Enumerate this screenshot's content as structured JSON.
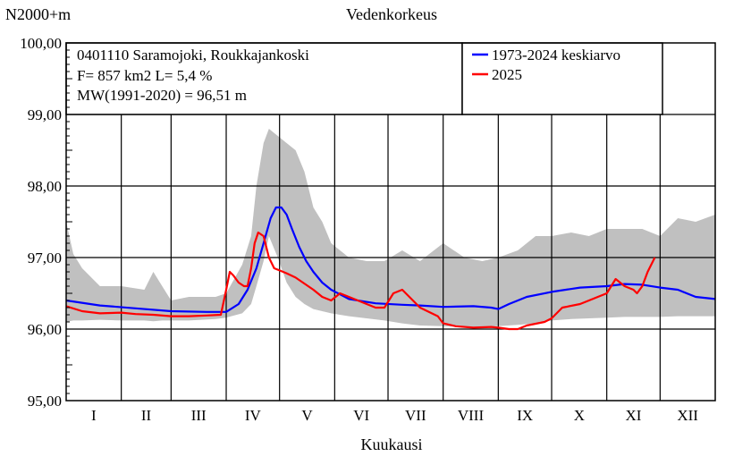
{
  "chart_data": {
    "type": "area",
    "title": "Vedenkorkeus",
    "unit_label": "N2000+m",
    "xlabel": "Kuukausi",
    "ylim": [
      95.0,
      100.0
    ],
    "xlim": [
      1,
      366
    ],
    "grid": true,
    "y_ticks": [
      "95,00",
      "96,00",
      "97,00",
      "98,00",
      "99,00",
      "100,00"
    ],
    "y_tick_values": [
      95,
      96,
      97,
      98,
      99,
      100
    ],
    "months": [
      "I",
      "II",
      "III",
      "IV",
      "V",
      "VI",
      "VII",
      "VIII",
      "IX",
      "X",
      "XI",
      "XII"
    ],
    "month_start_days": [
      1,
      32,
      60,
      91,
      121,
      152,
      182,
      213,
      244,
      274,
      305,
      335
    ],
    "info": {
      "station": "0401110 Saramojoki, Roukkajankoski",
      "area": "F=    857 km2 L=  5,4 %",
      "mean_level": "MW(1991-2020) = 96,51 m"
    },
    "legend": {
      "placement": "top-right"
    },
    "range_band": {
      "color": "#c0c0c0",
      "x": [
        1,
        5,
        10,
        20,
        32,
        45,
        50,
        55,
        60,
        70,
        85,
        91,
        100,
        105,
        108,
        112,
        115,
        120,
        125,
        130,
        135,
        140,
        145,
        150,
        155,
        160,
        170,
        180,
        190,
        200,
        213,
        225,
        235,
        244,
        255,
        265,
        274,
        285,
        295,
        305,
        315,
        325,
        335,
        345,
        355,
        366
      ],
      "min": [
        96.1,
        96.12,
        96.12,
        96.13,
        96.12,
        96.12,
        96.11,
        96.12,
        96.12,
        96.12,
        96.14,
        96.16,
        96.22,
        96.35,
        96.6,
        96.95,
        97.3,
        97.0,
        96.65,
        96.45,
        96.35,
        96.28,
        96.25,
        96.22,
        96.2,
        96.18,
        96.15,
        96.12,
        96.08,
        96.05,
        96.04,
        96.03,
        96.03,
        96.04,
        96.06,
        96.08,
        96.12,
        96.14,
        96.15,
        96.16,
        96.17,
        96.17,
        96.17,
        96.18,
        96.18,
        96.18
      ],
      "max": [
        97.5,
        97.05,
        96.85,
        96.6,
        96.6,
        96.55,
        96.8,
        96.6,
        96.4,
        96.45,
        96.45,
        96.5,
        96.9,
        97.3,
        98.0,
        98.6,
        98.8,
        98.7,
        98.6,
        98.5,
        98.2,
        97.7,
        97.5,
        97.2,
        97.1,
        97.0,
        96.95,
        96.95,
        97.1,
        96.95,
        97.2,
        97.0,
        96.95,
        97.0,
        97.1,
        97.3,
        97.3,
        97.35,
        97.3,
        97.4,
        97.4,
        97.4,
        97.3,
        97.55,
        97.5,
        97.6
      ]
    },
    "series": [
      {
        "name": "1973-2024 keskiarvo",
        "color": "#0000ff",
        "x": [
          1,
          20,
          40,
          60,
          80,
          91,
          98,
          103,
          108,
          112,
          116,
          119,
          122,
          125,
          128,
          132,
          136,
          140,
          145,
          150,
          160,
          175,
          190,
          200,
          213,
          230,
          240,
          244,
          250,
          260,
          274,
          290,
          305,
          315,
          325,
          335,
          345,
          355,
          366
        ],
        "values": [
          96.4,
          96.33,
          96.29,
          96.25,
          96.24,
          96.24,
          96.35,
          96.55,
          96.85,
          97.2,
          97.55,
          97.7,
          97.7,
          97.6,
          97.4,
          97.15,
          96.95,
          96.8,
          96.65,
          96.55,
          96.42,
          96.36,
          96.34,
          96.33,
          96.31,
          96.32,
          96.3,
          96.28,
          96.35,
          96.45,
          96.52,
          96.58,
          96.6,
          96.63,
          96.62,
          96.58,
          96.55,
          96.45,
          96.42
        ]
      },
      {
        "name": "2025",
        "color": "#ff0000",
        "x": [
          1,
          10,
          20,
          32,
          40,
          50,
          60,
          70,
          80,
          88,
          91,
          93,
          95,
          98,
          101,
          103,
          105,
          107,
          109,
          112,
          115,
          118,
          121,
          125,
          130,
          140,
          145,
          150,
          155,
          160,
          165,
          170,
          175,
          180,
          185,
          190,
          200,
          210,
          213,
          220,
          230,
          240,
          244,
          250,
          255,
          260,
          270,
          274,
          280,
          290,
          295,
          300,
          305,
          310,
          315,
          320,
          322,
          325,
          328,
          332
        ],
        "values": [
          96.32,
          96.25,
          96.22,
          96.23,
          96.21,
          96.2,
          96.18,
          96.18,
          96.19,
          96.2,
          96.55,
          96.8,
          96.75,
          96.65,
          96.6,
          96.6,
          96.85,
          97.2,
          97.35,
          97.3,
          97.0,
          96.85,
          96.82,
          96.78,
          96.72,
          96.55,
          96.45,
          96.4,
          96.5,
          96.45,
          96.4,
          96.35,
          96.3,
          96.3,
          96.5,
          96.55,
          96.3,
          96.18,
          96.08,
          96.04,
          96.02,
          96.03,
          96.02,
          96.0,
          96.0,
          96.05,
          96.1,
          96.15,
          96.3,
          96.35,
          96.4,
          96.45,
          96.5,
          96.7,
          96.6,
          96.55,
          96.5,
          96.6,
          96.8,
          97.0
        ]
      }
    ]
  }
}
